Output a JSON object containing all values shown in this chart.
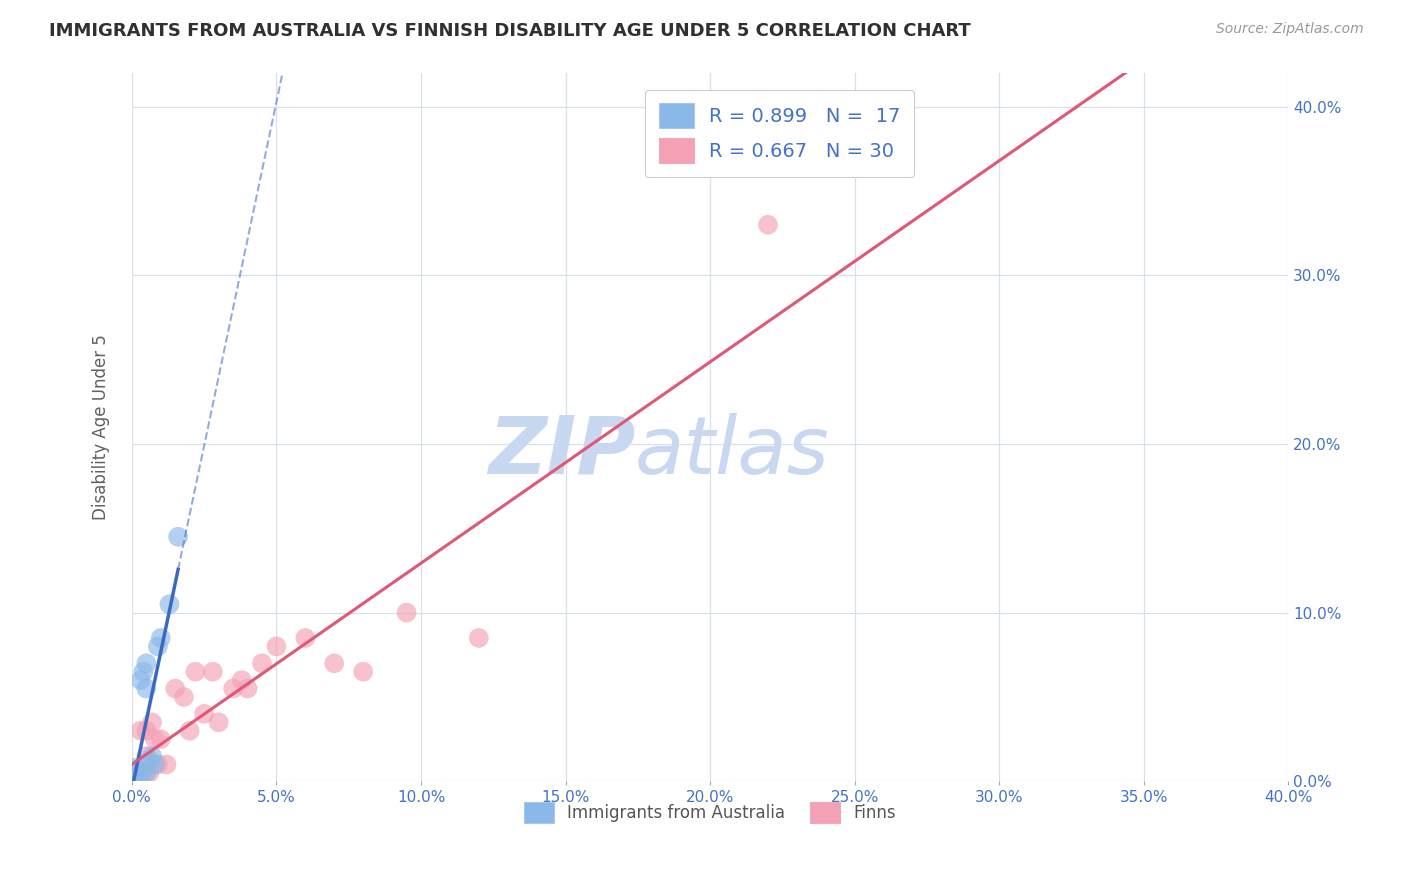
{
  "title": "IMMIGRANTS FROM AUSTRALIA VS FINNISH DISABILITY AGE UNDER 5 CORRELATION CHART",
  "source": "Source: ZipAtlas.com",
  "ylabel": "Disability Age Under 5",
  "xlim": [
    0.0,
    0.4
  ],
  "ylim": [
    0.0,
    0.42
  ],
  "x_ticks": [
    0.0,
    0.05,
    0.1,
    0.15,
    0.2,
    0.25,
    0.3,
    0.35,
    0.4
  ],
  "y_ticks": [
    0.0,
    0.1,
    0.2,
    0.3,
    0.4
  ],
  "x_tick_labels": [
    "0.0%",
    "5.0%",
    "10.0%",
    "15.0%",
    "20.0%",
    "25.0%",
    "30.0%",
    "35.0%",
    "40.0%"
  ],
  "y_tick_labels": [
    "0.0%",
    "10.0%",
    "20.0%",
    "30.0%",
    "40.0%"
  ],
  "background_color": "#ffffff",
  "legend_r1": "R = 0.899",
  "legend_n1": "N =  17",
  "legend_r2": "R = 0.667",
  "legend_n2": "N = 30",
  "color_blue": "#8ab8e8",
  "color_pink": "#f4a0b5",
  "color_blue_line": "#3a6abf",
  "color_pink_line": "#e05878",
  "grid_color": "#d8e0ec",
  "title_color": "#303030",
  "legend_text_color": "#4472c4",
  "watermark_zip_color": "#c8d8f0",
  "watermark_atlas_color": "#c8d8f0",
  "australia_x": [
    0.001,
    0.001,
    0.002,
    0.002,
    0.003,
    0.003,
    0.004,
    0.005,
    0.005,
    0.005,
    0.006,
    0.007,
    0.008,
    0.009,
    0.01,
    0.013,
    0.016
  ],
  "australia_y": [
    0.005,
    0.008,
    0.003,
    0.007,
    0.004,
    0.06,
    0.065,
    0.005,
    0.055,
    0.07,
    0.012,
    0.015,
    0.01,
    0.08,
    0.085,
    0.105,
    0.145
  ],
  "finns_x": [
    0.001,
    0.002,
    0.003,
    0.004,
    0.005,
    0.005,
    0.006,
    0.007,
    0.008,
    0.009,
    0.01,
    0.012,
    0.015,
    0.018,
    0.02,
    0.022,
    0.025,
    0.028,
    0.03,
    0.035,
    0.038,
    0.04,
    0.045,
    0.05,
    0.06,
    0.07,
    0.08,
    0.095,
    0.12,
    0.22
  ],
  "finns_y": [
    0.003,
    0.005,
    0.03,
    0.005,
    0.015,
    0.03,
    0.005,
    0.035,
    0.025,
    0.01,
    0.025,
    0.01,
    0.055,
    0.05,
    0.03,
    0.065,
    0.04,
    0.065,
    0.035,
    0.055,
    0.06,
    0.055,
    0.07,
    0.08,
    0.085,
    0.07,
    0.065,
    0.1,
    0.085,
    0.33
  ]
}
